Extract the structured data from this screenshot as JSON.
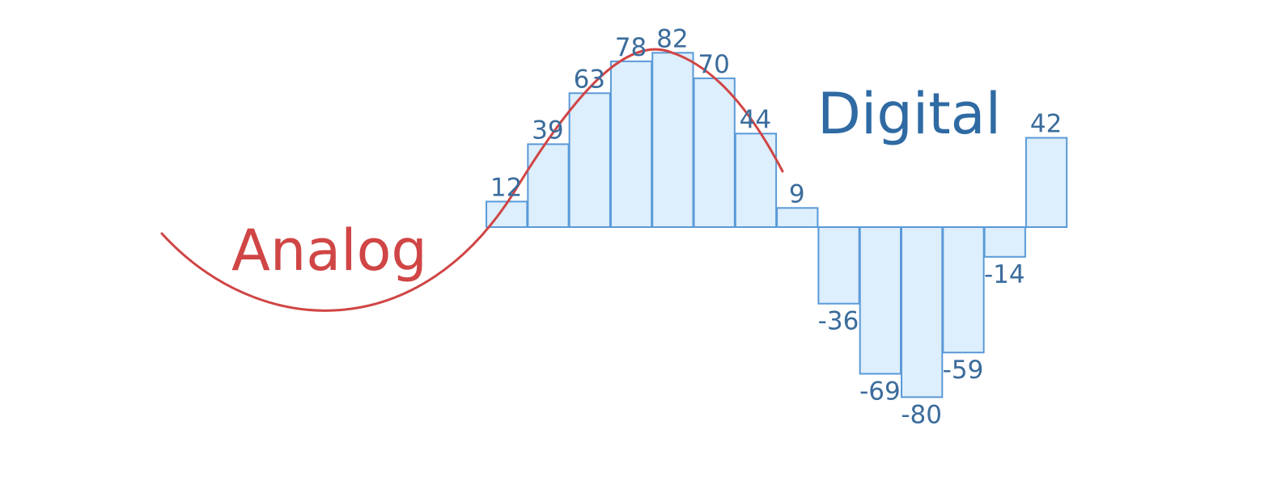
{
  "labels": {
    "analog": "Analog",
    "digital": "Digital"
  },
  "colors": {
    "analog": "#d04545",
    "digital": "#2f6aa3",
    "bar_fill": "#ddeefc",
    "bar_stroke": "#5a9ad8",
    "value_text": "#3b6c9c"
  },
  "samples": [
    12,
    39,
    63,
    78,
    82,
    70,
    44,
    9,
    -36,
    -69,
    -80,
    -59,
    -14,
    42
  ]
}
